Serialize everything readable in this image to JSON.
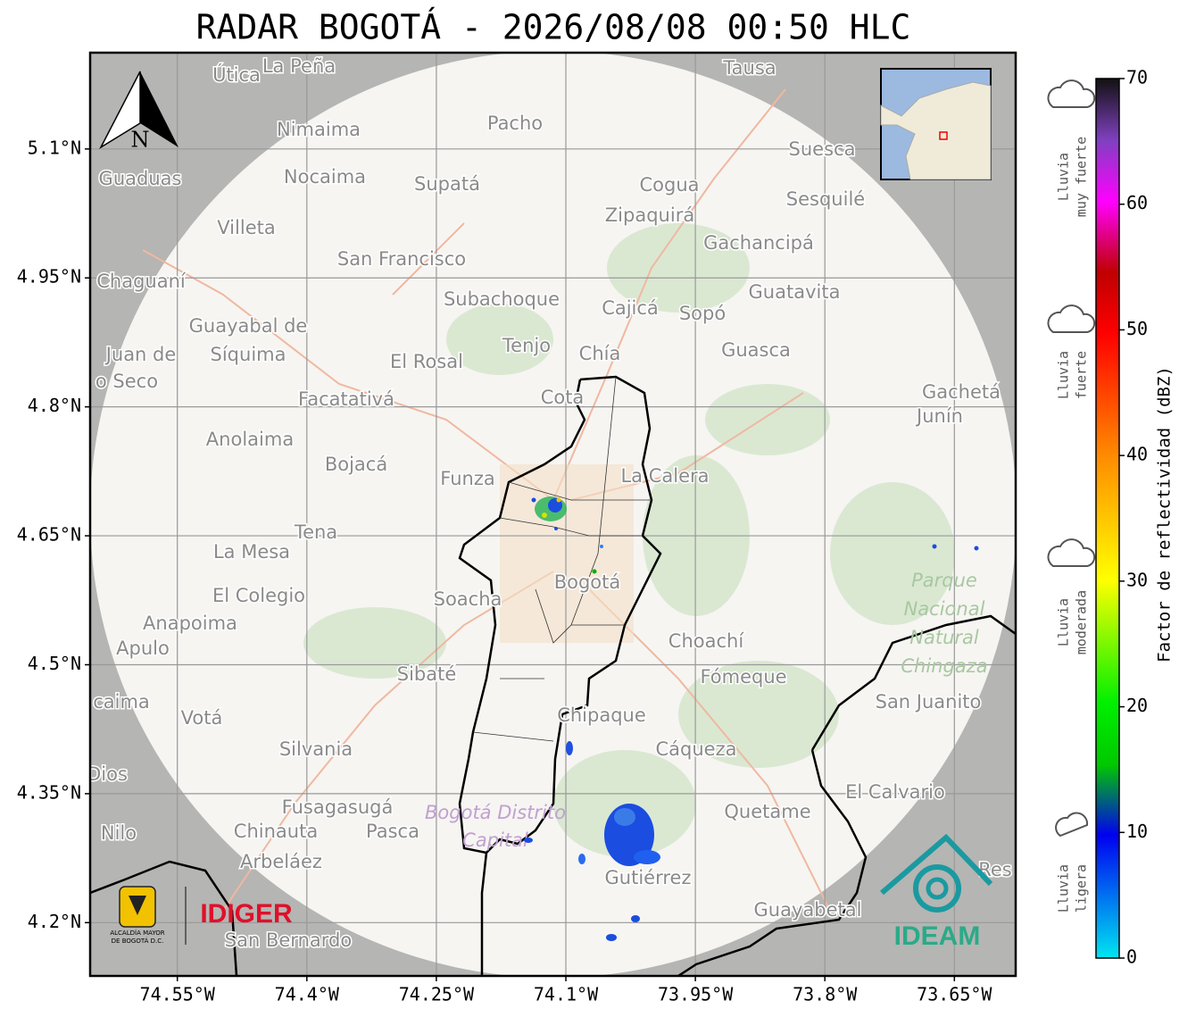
{
  "chart_data": {
    "type": "map",
    "title": "RADAR BOGOTÁ - 2026/08/08 00:50 HLC",
    "xlim": [
      -74.651,
      -73.579
    ],
    "ylim": [
      4.138,
      5.212
    ],
    "grid": true,
    "xticks": [
      {
        "value": -74.55,
        "label": "74.55°W"
      },
      {
        "value": -74.4,
        "label": "74.4°W"
      },
      {
        "value": -74.25,
        "label": "74.25°W"
      },
      {
        "value": -74.1,
        "label": "74.1°W"
      },
      {
        "value": -73.95,
        "label": "73.95°W"
      },
      {
        "value": -73.8,
        "label": "73.8°W"
      },
      {
        "value": -73.65,
        "label": "73.65°W"
      }
    ],
    "yticks": [
      {
        "value": 4.2,
        "label": "4.2°N"
      },
      {
        "value": 4.35,
        "label": "4.35°N"
      },
      {
        "value": 4.5,
        "label": "4.5°N"
      },
      {
        "value": 4.65,
        "label": "4.65°N"
      },
      {
        "value": 4.8,
        "label": "4.8°N"
      },
      {
        "value": 4.95,
        "label": "4.95°N"
      },
      {
        "value": 5.1,
        "label": "5.1°N"
      }
    ],
    "colorbar": {
      "label": "Factor de reflectividad (dBZ)",
      "lim": [
        0,
        70
      ],
      "ticks": [
        0,
        10,
        20,
        30,
        40,
        50,
        60,
        70
      ]
    },
    "rain_categories": [
      [
        "Lluvia",
        "muy fuerte"
      ],
      [
        "Lluvia",
        "fuerte"
      ],
      [
        "Lluvia",
        "moderada"
      ],
      [
        "Lluvia",
        "ligera"
      ]
    ],
    "north": "N",
    "logos": {
      "alcaldia": [
        "ALCALDÍA MAYOR",
        "DE BOGOTÁ D.C."
      ],
      "idiger": "IDIGER",
      "ideam": "IDEAM"
    },
    "park_label": [
      "Parque",
      "Nacional",
      "Natural",
      "Chingaza"
    ],
    "district_label": [
      "Bogotá Distrito",
      "Capital"
    ],
    "places": [
      "Útica",
      "La Peña",
      "Tausa",
      "Pacho",
      "Nimaima",
      "Guaduas",
      "Nocaima",
      "Supatá",
      "Cogua",
      "Suesca",
      "Sesquilé",
      "Villeta",
      "Zipaquirá",
      "Gachancipá",
      "San Francisco",
      "Chaguaní",
      "Guatavita",
      "Subachoque",
      "Cajicá",
      "Sopó",
      "Guayabal de",
      "Síquima",
      "Juan de",
      "o Seco",
      "Tenjo",
      "Chía",
      "Guasca",
      "El Rosal",
      "Facatativá",
      "Cota",
      "Gachetá",
      "Junín",
      "Anolaima",
      "Bojacá",
      "Funza",
      "La Calera",
      "Tena",
      "La Mesa",
      "Bogotá",
      "Soacha",
      "El Colegio",
      "Anapoima",
      "Apulo",
      "Choachí",
      "Sibaté",
      "Fómeque",
      "San Juanito",
      "caima",
      "Votá",
      "Chipaque",
      "Silvania",
      "Cáqueza",
      "Dios",
      "El Calvario",
      "Fusagasugá",
      "Quetame",
      "Chinauta",
      "Pasca",
      "Nilo",
      "Arbeláez",
      "Res",
      "Gutiérrez",
      "Guayabetal",
      "San Bernardo"
    ]
  }
}
